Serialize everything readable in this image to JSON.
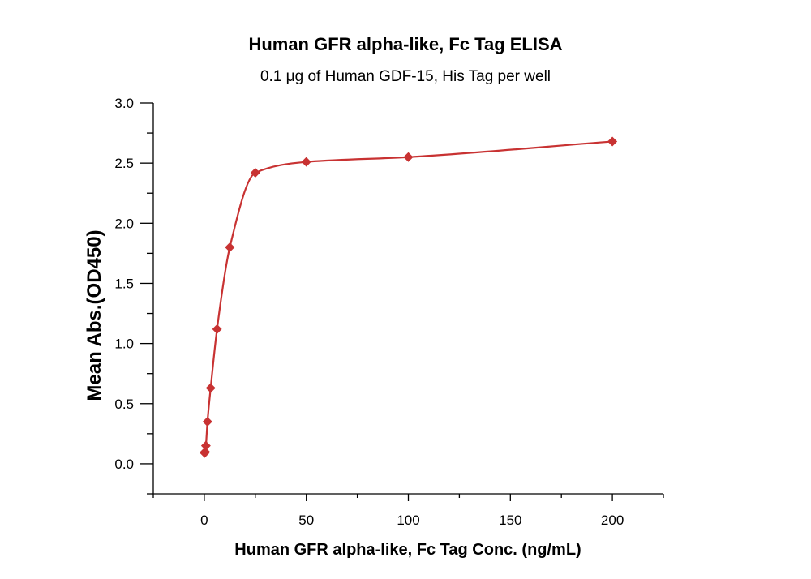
{
  "chart_data": {
    "type": "scatter",
    "title": "Human GFR alpha-like, Fc Tag ELISA",
    "subtitle": "0.1 μg of Human GDF-15, His Tag per well",
    "xlabel": "Human GFR alpha-like, Fc Tag Conc. (ng/mL)",
    "ylabel": "Mean Abs.(OD450)",
    "xlim": [
      -25,
      225
    ],
    "ylim": [
      -0.25,
      3.0
    ],
    "xticks": [
      0,
      50,
      100,
      150,
      200
    ],
    "yticks": [
      0.0,
      0.5,
      1.0,
      1.5,
      2.0,
      2.5,
      3.0
    ],
    "xtick_labels": [
      "0",
      "50",
      "100",
      "150",
      "200"
    ],
    "ytick_labels": [
      "0.0",
      "0.5",
      "1.0",
      "1.5",
      "2.0",
      "2.5",
      "3.0"
    ],
    "grid": false,
    "legend": "none",
    "marker": "diamond",
    "color": "#c83232",
    "series": [
      {
        "x": [
          0.195,
          0.39,
          0.78,
          1.56,
          3.125,
          6.25,
          12.5,
          25,
          50,
          100,
          200
        ],
        "y": [
          0.09,
          0.1,
          0.15,
          0.35,
          0.63,
          1.12,
          1.8,
          2.42,
          2.51,
          2.55,
          2.68
        ],
        "fit_curve": true
      }
    ]
  }
}
